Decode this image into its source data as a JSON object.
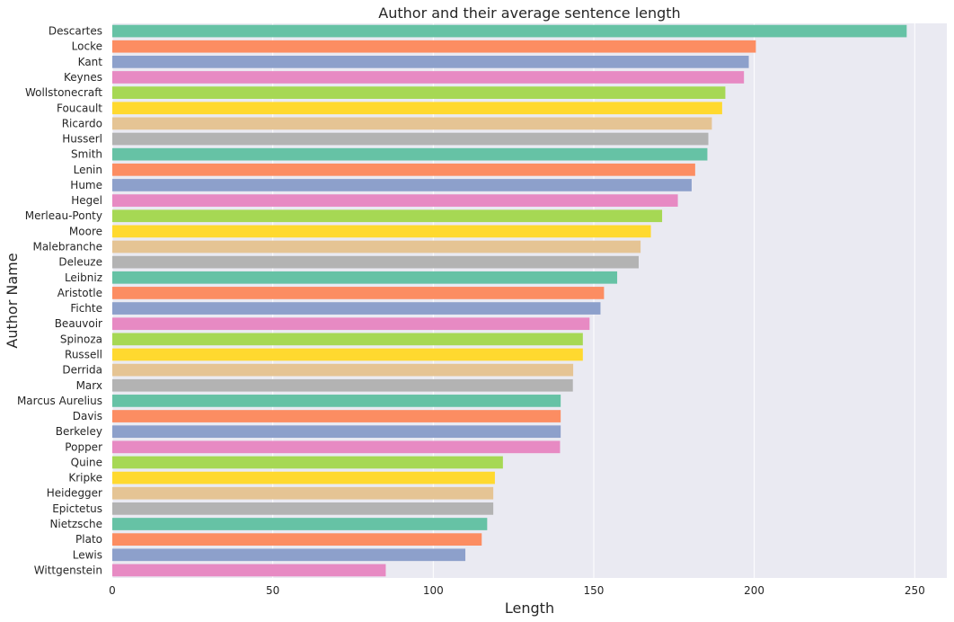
{
  "chart_data": {
    "type": "bar",
    "orientation": "horizontal",
    "title": "Author and their average sentence length",
    "xlabel": "Length",
    "ylabel": "Author Name",
    "xlim": [
      0,
      260
    ],
    "xticks": [
      "0",
      "50",
      "100",
      "150",
      "200",
      "250"
    ],
    "grid": true,
    "background": "#eaeaf2",
    "palette": [
      "#66c2a5",
      "#fc8d62",
      "#8da0cb",
      "#e78ac3",
      "#a6d854",
      "#ffd92f",
      "#e5c494",
      "#b3b3b3"
    ],
    "categories": [
      "Descartes",
      "Locke",
      "Kant",
      "Keynes",
      "Wollstonecraft",
      "Foucault",
      "Ricardo",
      "Husserl",
      "Smith",
      "Lenin",
      "Hume",
      "Hegel",
      "Merleau-Ponty",
      "Moore",
      "Malebranche",
      "Deleuze",
      "Leibniz",
      "Aristotle",
      "Fichte",
      "Beauvoir",
      "Spinoza",
      "Russell",
      "Derrida",
      "Marx",
      "Marcus Aurelius",
      "Davis",
      "Berkeley",
      "Popper",
      "Quine",
      "Kripke",
      "Heidegger",
      "Epictetus",
      "Nietzsche",
      "Plato",
      "Lewis",
      "Wittgenstein"
    ],
    "values": [
      247.5,
      200.5,
      198.3,
      196.8,
      191.0,
      190.0,
      186.8,
      185.7,
      185.4,
      181.6,
      180.5,
      176.2,
      171.3,
      167.8,
      164.6,
      164.0,
      157.3,
      153.2,
      152.1,
      148.7,
      146.6,
      146.6,
      143.6,
      143.5,
      139.7,
      139.7,
      139.7,
      139.5,
      121.7,
      119.2,
      118.7,
      118.7,
      116.8,
      115.1,
      110.0,
      85.2
    ]
  }
}
